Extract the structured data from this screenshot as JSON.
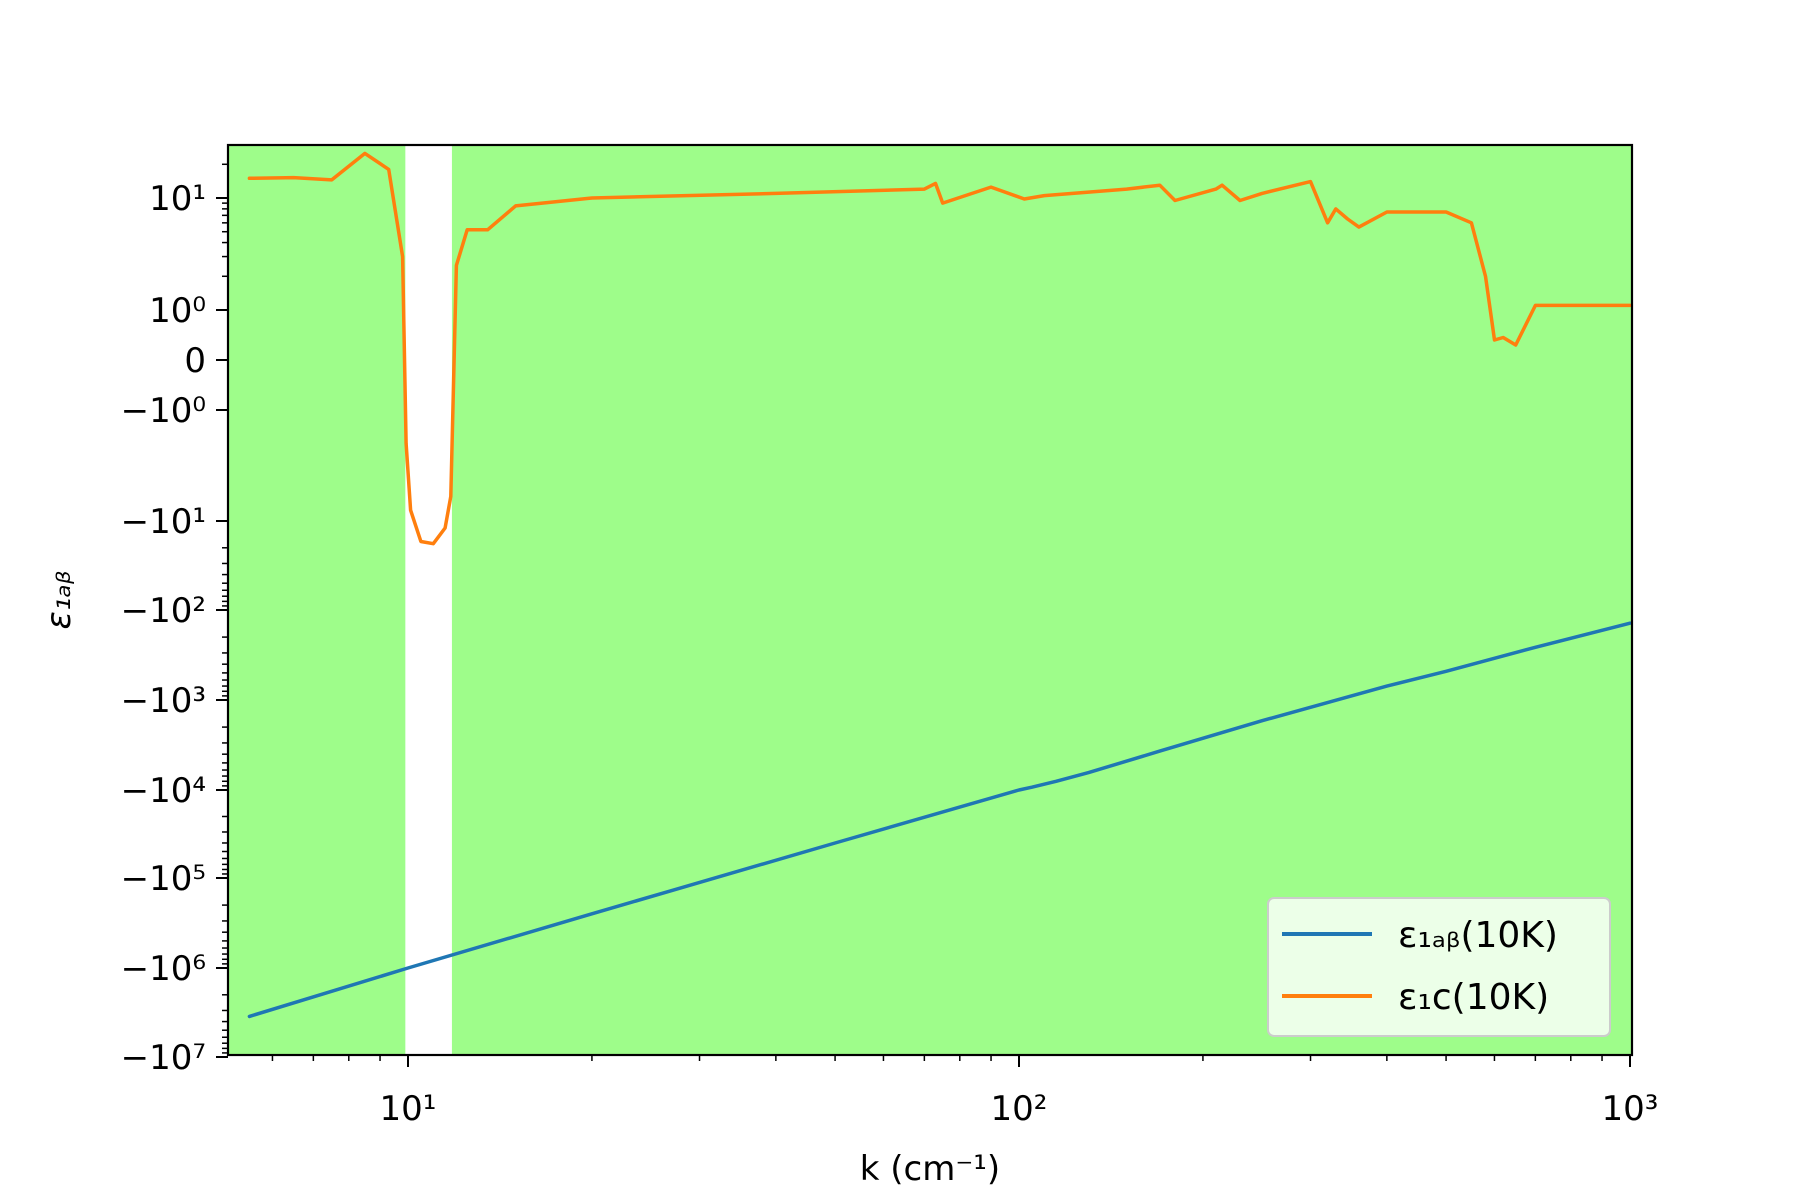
{
  "chart_data": {
    "type": "line",
    "xlabel": "k (cm⁻¹)",
    "ylabel": "ε₁ₐᵦ",
    "x_scale": "log",
    "y_scale": "symlog",
    "xlim": [
      5.5,
      1000
    ],
    "x_ticks": [
      {
        "value": 10,
        "label": "10¹"
      },
      {
        "value": 100,
        "label": "10²"
      },
      {
        "value": 1000,
        "label": "10³"
      }
    ],
    "y_ticks": [
      {
        "value": 10,
        "label": "10¹"
      },
      {
        "value": 1,
        "label": "10⁰"
      },
      {
        "value": 0,
        "label": "0"
      },
      {
        "value": -1,
        "label": "−10⁰"
      },
      {
        "value": -10,
        "label": "−10¹"
      },
      {
        "value": -100,
        "label": "−10²"
      },
      {
        "value": -1000,
        "label": "−10³"
      },
      {
        "value": -10000,
        "label": "−10⁴"
      },
      {
        "value": -100000,
        "label": "−10⁵"
      },
      {
        "value": -1000000,
        "label": "−10⁶"
      },
      {
        "value": -10000000,
        "label": "−10⁷"
      }
    ],
    "background_color": "#9efd8a",
    "negative_band": {
      "x_start": 9.9,
      "x_end": 11.8,
      "color": "#ffffff"
    },
    "grid": false,
    "legend_position": "bottom-right",
    "series": [
      {
        "name": "ε₁ₐᵦ(10K)",
        "color": "#1f77b4",
        "x": [
          5.5,
          10,
          20,
          50,
          100,
          105,
          115,
          130,
          170,
          250,
          400,
          500,
          700,
          1000
        ],
        "y": [
          -3500000,
          -1000000,
          -250000,
          -40000,
          -10000,
          -9300,
          -8000,
          -6400,
          -3700,
          -1700,
          -700,
          -480,
          -260,
          -140
        ]
      },
      {
        "name": "ε₁c(10K)",
        "color": "#ff7f0e",
        "x": [
          5.5,
          6.5,
          7.5,
          8.5,
          9.3,
          9.8,
          9.93,
          10.1,
          10.5,
          11.0,
          11.5,
          11.75,
          12.0,
          12.5,
          13.5,
          15,
          20,
          40,
          70,
          73,
          75,
          90,
          102,
          110,
          150,
          170,
          180,
          210,
          215,
          230,
          250,
          300,
          320,
          330,
          345,
          360,
          400,
          500,
          550,
          580,
          600,
          620,
          650,
          700,
          1000
        ],
        "y": [
          15,
          15.2,
          14.5,
          25,
          18,
          3,
          -2,
          -8,
          -17,
          -18,
          -12,
          -6,
          2.5,
          5.2,
          5.2,
          8.5,
          10,
          11,
          12,
          13.5,
          9,
          12.5,
          9.8,
          10.5,
          12,
          13,
          9.5,
          12,
          13,
          9.5,
          11,
          14,
          6,
          8,
          6.5,
          5.5,
          7.5,
          7.5,
          6,
          2,
          0.4,
          0.45,
          0.3,
          1.1,
          1.1
        ]
      }
    ]
  }
}
